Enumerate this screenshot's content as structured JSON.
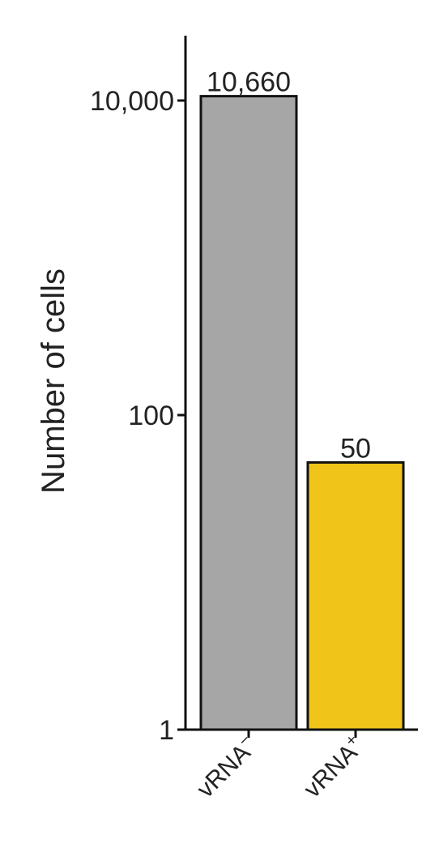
{
  "chart_data": {
    "type": "bar",
    "categories": [
      "vRNA",
      "vRNA"
    ],
    "category_superscripts": [
      "−",
      "+"
    ],
    "values": [
      10660,
      50
    ],
    "data_labels": [
      "10,660",
      "50"
    ],
    "colors": [
      "#a6a6a6",
      "#f0c419"
    ],
    "title": "",
    "xlabel": "",
    "ylabel": "Number of cells",
    "yscale": "log10",
    "ylim": [
      1,
      30000
    ],
    "yticks": [
      1,
      100,
      10000
    ],
    "ytick_labels": [
      "1",
      "100",
      "10,000"
    ],
    "grid": false,
    "legend": "none"
  }
}
